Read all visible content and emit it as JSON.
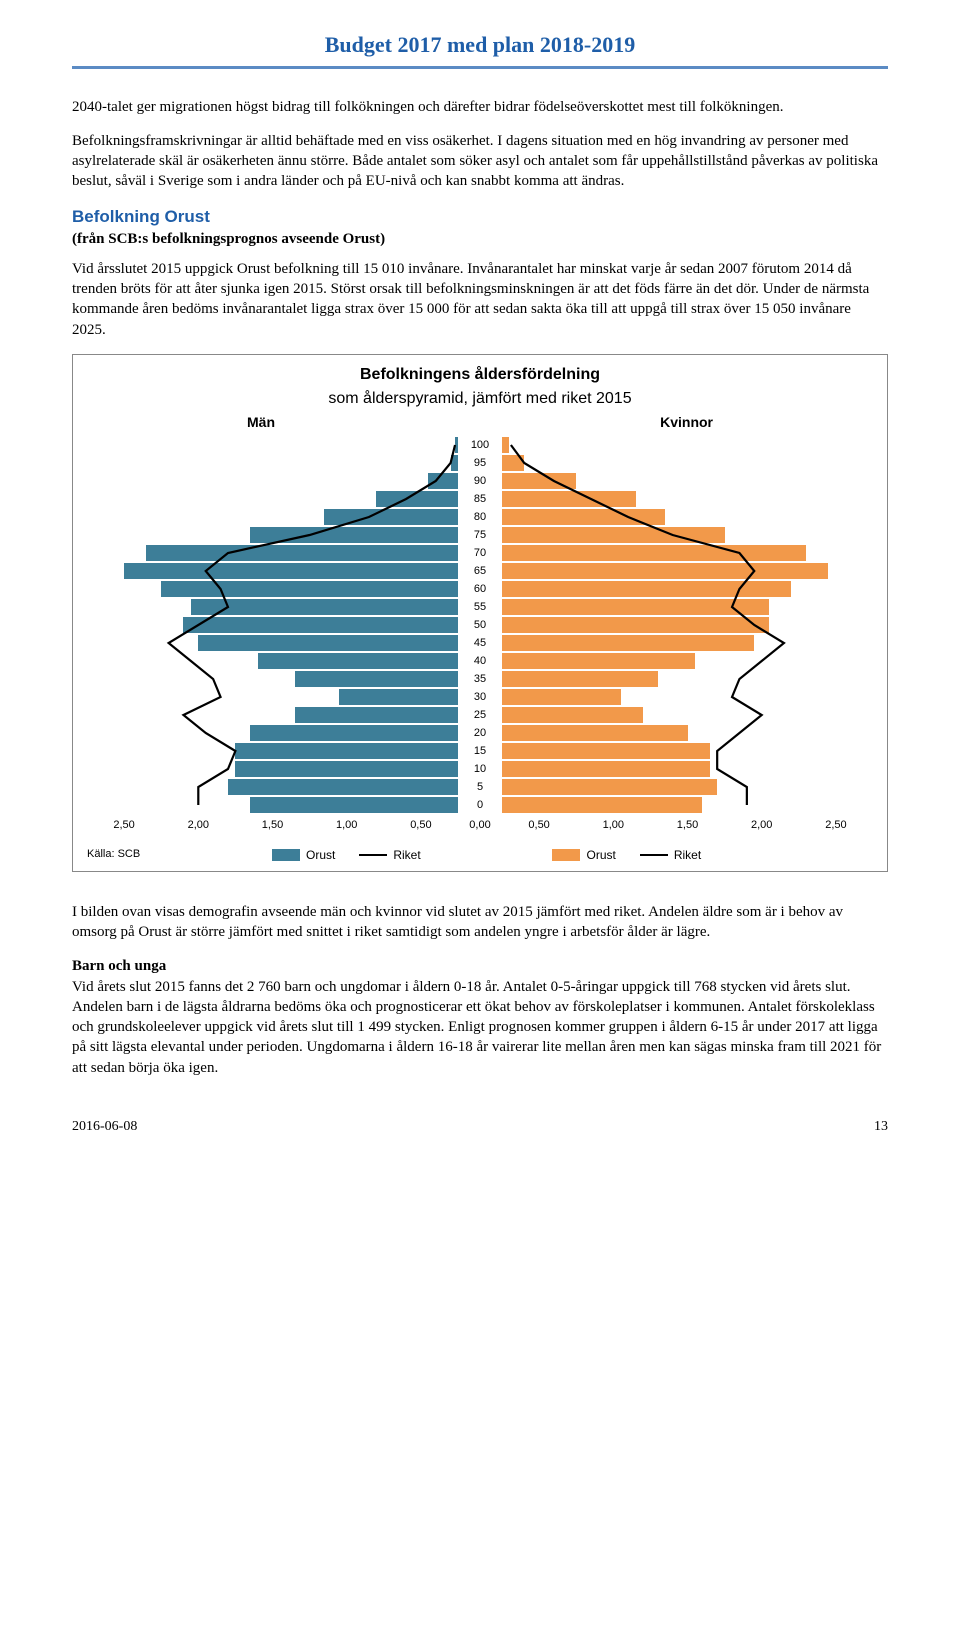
{
  "header": {
    "title": "Budget 2017 med plan 2018-2019"
  },
  "para1": "2040-talet ger migrationen högst bidrag till folkökningen och därefter bidrar födelseöverskottet mest till folkökningen.",
  "para2": "Befolkningsframskrivningar är alltid behäftade med en viss osäkerhet. I dagens situation med en hög invandring av personer med asylrelaterade skäl är osäkerheten ännu större. Både antalet som söker asyl och antalet som får uppehållstillstånd påverkas av politiska beslut, såväl i Sverige som i andra länder och på EU-nivå och kan snabbt komma att ändras.",
  "section": {
    "head": "Befolkning Orust",
    "sub": "(från SCB:s befolkningsprognos avseende Orust)"
  },
  "para3": "Vid årsslutet 2015 uppgick Orust befolkning till 15 010 invånare. Invånarantalet har minskat varje år sedan 2007 förutom 2014 då trenden bröts för att åter sjunka igen 2015. Störst orsak till befolkningsminskningen är att det föds färre än det dör. Under de närmsta kommande åren bedöms invånarantalet ligga strax över 15 000 för att sedan sakta öka till att uppgå till strax över 15 050 invånare 2025.",
  "chart": {
    "title1": "Befolkningens åldersfördelning",
    "title2": "som ålderspyramid, jämfört med riket 2015",
    "left_label": "Män",
    "right_label": "Kvinnor",
    "ages": [
      100,
      95,
      90,
      85,
      80,
      75,
      70,
      65,
      60,
      55,
      50,
      45,
      40,
      35,
      30,
      25,
      20,
      15,
      10,
      5,
      0
    ],
    "male_orust": [
      0.02,
      0.05,
      0.2,
      0.55,
      0.9,
      1.4,
      2.1,
      2.25,
      2.0,
      1.8,
      1.85,
      1.75,
      1.35,
      1.1,
      0.8,
      1.1,
      1.4,
      1.5,
      1.5,
      1.55,
      1.4
    ],
    "female_orust": [
      0.05,
      0.15,
      0.5,
      0.9,
      1.1,
      1.5,
      2.05,
      2.2,
      1.95,
      1.8,
      1.8,
      1.7,
      1.3,
      1.05,
      0.8,
      0.95,
      1.25,
      1.4,
      1.4,
      1.45,
      1.35
    ],
    "male_riket": [
      0.02,
      0.05,
      0.15,
      0.35,
      0.6,
      1.0,
      1.55,
      1.7,
      1.6,
      1.55,
      1.75,
      1.95,
      1.8,
      1.65,
      1.6,
      1.85,
      1.7,
      1.5,
      1.55,
      1.75,
      1.75
    ],
    "female_riket": [
      0.06,
      0.15,
      0.35,
      0.6,
      0.85,
      1.15,
      1.6,
      1.7,
      1.6,
      1.55,
      1.7,
      1.9,
      1.75,
      1.6,
      1.55,
      1.75,
      1.6,
      1.45,
      1.45,
      1.65,
      1.65
    ],
    "x_ticks": [
      "0,50",
      "1,00",
      "1,50",
      "2,00",
      "2,50"
    ],
    "x_zero": "0,00",
    "xmax": 2.5,
    "male_color": "#3d7e98",
    "female_color": "#f2994a",
    "riket_color": "#000000",
    "bg_color": "#ffffff",
    "legend_orust": "Orust",
    "legend_riket": "Riket",
    "source": "Källa: SCB"
  },
  "para4": "I bilden ovan visas demografin avseende män och kvinnor vid slutet av 2015 jämfört med riket. Andelen äldre som är i behov av omsorg på Orust är större jämfört med snittet i riket samtidigt som andelen yngre i arbetsför ålder är lägre.",
  "sub2": {
    "head": "Barn och unga"
  },
  "para5": "Vid årets slut 2015 fanns det 2 760 barn och ungdomar i åldern 0-18 år. Antalet 0-5-åringar uppgick till 768 stycken vid årets slut. Andelen barn i de lägsta åldrarna bedöms öka och prognosticerar ett ökat behov av förskoleplatser i kommunen. Antalet förskoleklass och grundskoleelever uppgick vid årets slut till 1 499 stycken. Enligt prognosen kommer gruppen i åldern 6-15 år under 2017 att ligga på sitt lägsta elevantal under perioden. Ungdomarna i åldern 16-18 år vairerar lite mellan åren men kan sägas minska fram till 2021 för att sedan börja öka igen.",
  "footer": {
    "date": "2016-06-08",
    "page": "13"
  }
}
